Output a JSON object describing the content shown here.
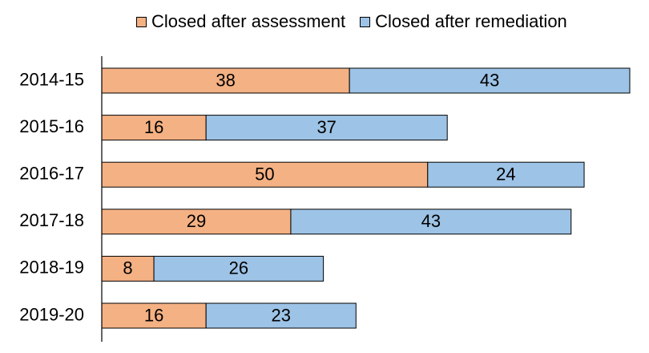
{
  "chart_data": {
    "type": "bar",
    "orientation": "horizontal",
    "stacked": true,
    "categories": [
      "2014-15",
      "2015-16",
      "2016-17",
      "2017-18",
      "2018-19",
      "2019-20"
    ],
    "series": [
      {
        "name": "Closed after assessment",
        "values": [
          38,
          16,
          50,
          29,
          8,
          16
        ],
        "color": "#f4b183"
      },
      {
        "name": "Closed after remediation",
        "values": [
          43,
          37,
          24,
          43,
          26,
          23
        ],
        "color": "#9dc3e6"
      }
    ],
    "title": "",
    "xlabel": "",
    "ylabel": "",
    "xlim": [
      0,
      81
    ],
    "grid": false,
    "legend_position": "top"
  }
}
